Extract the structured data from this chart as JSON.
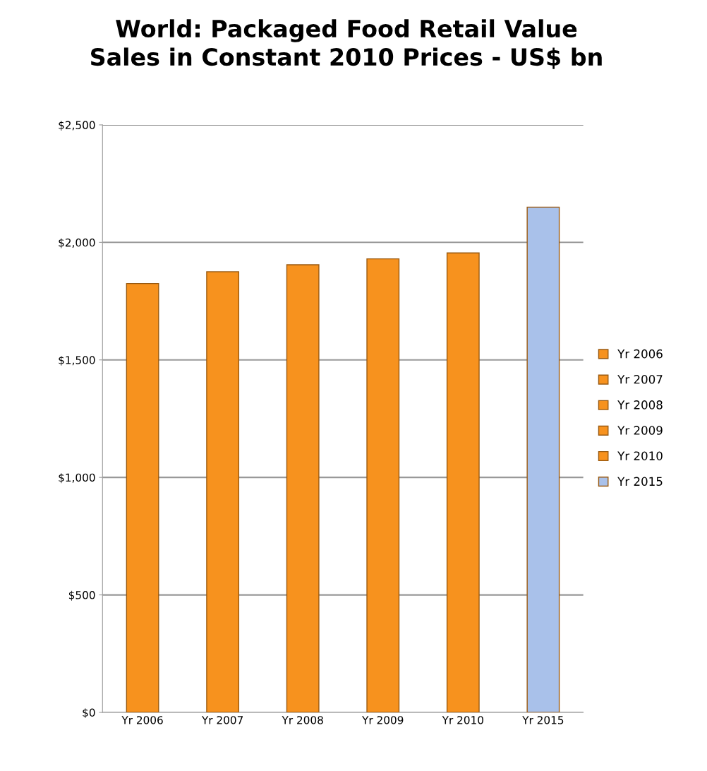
{
  "chart_data": {
    "type": "bar",
    "stacked": true,
    "title": "World: Packaged Food Retail Value\nSales in Constant 2010 Prices - US$ bn",
    "categories": [
      "Yr 2006",
      "Yr 2007",
      "Yr 2008",
      "Yr 2009",
      "Yr 2010",
      "Yr 2015"
    ],
    "series": [
      {
        "name": "Yr 2006",
        "color": "#f7921e",
        "values": [
          1825,
          null,
          null,
          null,
          null,
          null
        ]
      },
      {
        "name": "Yr 2007",
        "color": "#f7921e",
        "values": [
          null,
          1875,
          null,
          null,
          null,
          null
        ]
      },
      {
        "name": "Yr 2008",
        "color": "#f7921e",
        "values": [
          null,
          null,
          1905,
          null,
          null,
          null
        ]
      },
      {
        "name": "Yr 2009",
        "color": "#f7921e",
        "values": [
          null,
          null,
          null,
          1930,
          null,
          null
        ]
      },
      {
        "name": "Yr 2010",
        "color": "#f7921e",
        "values": [
          null,
          null,
          null,
          null,
          1955,
          null
        ]
      },
      {
        "name": "Yr 2015",
        "color": "#a9c1ea",
        "values": [
          null,
          null,
          null,
          null,
          null,
          2150
        ]
      }
    ],
    "ylim": [
      0,
      2500
    ],
    "yticks": [
      {
        "value": 0,
        "label": "$0"
      },
      {
        "value": 500,
        "label": "$500"
      },
      {
        "value": 1000,
        "label": "$1,000"
      },
      {
        "value": 1500,
        "label": "$1,500"
      },
      {
        "value": 2000,
        "label": "$2,000"
      },
      {
        "value": 2500,
        "label": "$2,500"
      }
    ],
    "grid": "y",
    "legend": "right"
  }
}
